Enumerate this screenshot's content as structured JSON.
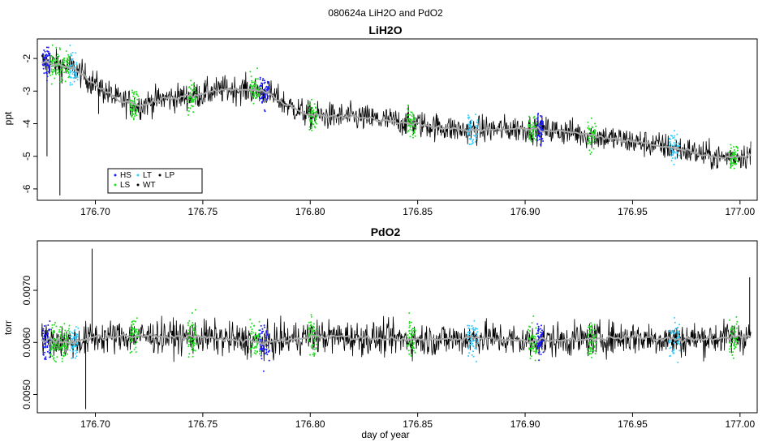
{
  "figure_title": "080624a   LiH2O and PdO2",
  "chart_data": [
    {
      "type": "line",
      "title": "LiH2O",
      "xlabel": "",
      "ylabel": "ppt",
      "xlim": [
        176.673,
        177.008
      ],
      "ylim": [
        -6.35,
        -1.4
      ],
      "x_ticks": [
        176.7,
        176.75,
        176.8,
        176.85,
        176.9,
        176.95,
        177.0
      ],
      "x_tick_labels": [
        "176.70",
        "176.75",
        "176.80",
        "176.85",
        "176.90",
        "176.95",
        "177.00"
      ],
      "y_ticks": [
        -2,
        -3,
        -4,
        -5,
        -6
      ],
      "y_tick_labels": [
        "-2",
        "-3",
        "-4",
        "-5",
        "-6"
      ],
      "grid": false,
      "legend_position": "bottom-left",
      "legend": [
        {
          "label": "HS",
          "color": "#1a1aff"
        },
        {
          "label": "LS",
          "color": "#22dd22"
        },
        {
          "label": "LT",
          "color": "#33ccff"
        },
        {
          "label": "WT",
          "color": "#000000"
        },
        {
          "label": "LP",
          "color": "#000000"
        }
      ],
      "series": [
        {
          "role": "raw",
          "color": "#000000",
          "noise": 0.42,
          "x": [
            176.675,
            176.68,
            176.69,
            176.7,
            176.71,
            176.72,
            176.73,
            176.745,
            176.76,
            176.77,
            176.78,
            176.79,
            176.8,
            176.82,
            176.85,
            176.87,
            176.9,
            176.92,
            176.95,
            176.97,
            176.99,
            177.005
          ],
          "y": [
            -2.1,
            -2.15,
            -2.3,
            -2.8,
            -3.25,
            -3.45,
            -3.25,
            -3.15,
            -2.95,
            -2.95,
            -3.05,
            -3.45,
            -3.75,
            -3.8,
            -4.0,
            -4.2,
            -4.15,
            -4.25,
            -4.55,
            -4.75,
            -5.05,
            -4.95
          ]
        },
        {
          "role": "smoothed",
          "color": "#aaaaaa",
          "x": [
            176.675,
            176.68,
            176.69,
            176.7,
            176.71,
            176.72,
            176.73,
            176.745,
            176.76,
            176.77,
            176.78,
            176.79,
            176.8,
            176.82,
            176.85,
            176.87,
            176.9,
            176.92,
            176.95,
            176.97,
            176.99,
            177.005
          ],
          "y": [
            -2.1,
            -2.15,
            -2.3,
            -2.8,
            -3.25,
            -3.45,
            -3.25,
            -3.15,
            -2.95,
            -2.95,
            -3.05,
            -3.45,
            -3.75,
            -3.8,
            -4.0,
            -4.2,
            -4.15,
            -4.25,
            -4.55,
            -4.75,
            -5.05,
            -4.95
          ]
        }
      ],
      "spikes": [
        {
          "x": 176.6775,
          "ylow": -5.0
        },
        {
          "x": 176.6835,
          "ylow": -6.2
        },
        {
          "x": 176.7015,
          "ylow": -3.7
        }
      ],
      "calibration_segments": [
        {
          "x0": 176.6755,
          "x1": 176.679,
          "color": "#1a1aff"
        },
        {
          "x0": 176.679,
          "x1": 176.6835,
          "color": "#22dd22"
        },
        {
          "x0": 176.6835,
          "x1": 176.688,
          "color": "#22dd22"
        },
        {
          "x0": 176.688,
          "x1": 176.692,
          "color": "#33ccff"
        },
        {
          "x0": 176.716,
          "x1": 176.72,
          "color": "#22dd22"
        },
        {
          "x0": 176.743,
          "x1": 176.747,
          "color": "#22dd22"
        },
        {
          "x0": 176.772,
          "x1": 176.7765,
          "color": "#22dd22"
        },
        {
          "x0": 176.7765,
          "x1": 176.781,
          "color": "#1a1aff"
        },
        {
          "x0": 176.799,
          "x1": 176.803,
          "color": "#22dd22"
        },
        {
          "x0": 176.845,
          "x1": 176.849,
          "color": "#22dd22"
        },
        {
          "x0": 176.873,
          "x1": 176.878,
          "color": "#33ccff"
        },
        {
          "x0": 176.9015,
          "x1": 176.9055,
          "color": "#22dd22"
        },
        {
          "x0": 176.9055,
          "x1": 176.9085,
          "color": "#1a1aff"
        },
        {
          "x0": 176.929,
          "x1": 176.933,
          "color": "#22dd22"
        },
        {
          "x0": 176.967,
          "x1": 176.972,
          "color": "#33ccff"
        },
        {
          "x0": 176.995,
          "x1": 176.999,
          "color": "#22dd22"
        }
      ]
    },
    {
      "type": "line",
      "title": "PdO2",
      "xlabel": "day of year",
      "ylabel": "torr",
      "xlim": [
        176.673,
        177.008
      ],
      "ylim": [
        0.00465,
        0.00795
      ],
      "x_ticks": [
        176.7,
        176.75,
        176.8,
        176.85,
        176.9,
        176.95,
        177.0
      ],
      "x_tick_labels": [
        "176.70",
        "176.75",
        "176.80",
        "176.85",
        "176.90",
        "176.95",
        "177.00"
      ],
      "y_ticks": [
        0.005,
        0.006,
        0.007
      ],
      "y_tick_labels": [
        "0.0050",
        "0.0060",
        "0.0070"
      ],
      "grid": false,
      "series": [
        {
          "role": "raw",
          "color": "#000000",
          "noise": 0.00032,
          "x": [
            176.675,
            176.69,
            176.7,
            176.72,
            176.75,
            176.78,
            176.8,
            176.83,
            176.86,
            176.88,
            176.9,
            176.92,
            176.95,
            176.97,
            177.005
          ],
          "y": [
            0.00605,
            0.006,
            0.0061,
            0.00612,
            0.0061,
            0.006,
            0.00612,
            0.00608,
            0.00605,
            0.0061,
            0.00602,
            0.00605,
            0.0061,
            0.00605,
            0.00612
          ]
        },
        {
          "role": "smoothed",
          "color": "#aaaaaa",
          "x": [
            176.675,
            176.69,
            176.7,
            176.72,
            176.75,
            176.78,
            176.8,
            176.83,
            176.86,
            176.88,
            176.9,
            176.92,
            176.95,
            176.97,
            177.005
          ],
          "y": [
            0.00605,
            0.006,
            0.0061,
            0.00612,
            0.0061,
            0.006,
            0.00612,
            0.00608,
            0.00605,
            0.0061,
            0.00602,
            0.00605,
            0.0061,
            0.00605,
            0.00612
          ]
        }
      ],
      "spikes": [
        {
          "x": 176.6985,
          "yhigh": 0.0078
        },
        {
          "x": 176.6955,
          "ylow": 0.00472
        },
        {
          "x": 177.0045,
          "yhigh": 0.00725
        }
      ],
      "calibration_segments": [
        {
          "x0": 176.6755,
          "x1": 176.679,
          "color": "#1a1aff"
        },
        {
          "x0": 176.679,
          "x1": 176.6835,
          "color": "#22dd22"
        },
        {
          "x0": 176.6835,
          "x1": 176.688,
          "color": "#22dd22"
        },
        {
          "x0": 176.688,
          "x1": 176.692,
          "color": "#33ccff"
        },
        {
          "x0": 176.716,
          "x1": 176.72,
          "color": "#22dd22"
        },
        {
          "x0": 176.743,
          "x1": 176.747,
          "color": "#22dd22"
        },
        {
          "x0": 176.772,
          "x1": 176.7765,
          "color": "#22dd22"
        },
        {
          "x0": 176.7765,
          "x1": 176.781,
          "color": "#1a1aff"
        },
        {
          "x0": 176.799,
          "x1": 176.803,
          "color": "#22dd22"
        },
        {
          "x0": 176.845,
          "x1": 176.849,
          "color": "#22dd22"
        },
        {
          "x0": 176.873,
          "x1": 176.878,
          "color": "#33ccff"
        },
        {
          "x0": 176.9015,
          "x1": 176.9055,
          "color": "#22dd22"
        },
        {
          "x0": 176.9055,
          "x1": 176.9085,
          "color": "#1a1aff"
        },
        {
          "x0": 176.929,
          "x1": 176.933,
          "color": "#22dd22"
        },
        {
          "x0": 176.967,
          "x1": 176.972,
          "color": "#33ccff"
        },
        {
          "x0": 176.995,
          "x1": 176.999,
          "color": "#22dd22"
        }
      ]
    }
  ]
}
